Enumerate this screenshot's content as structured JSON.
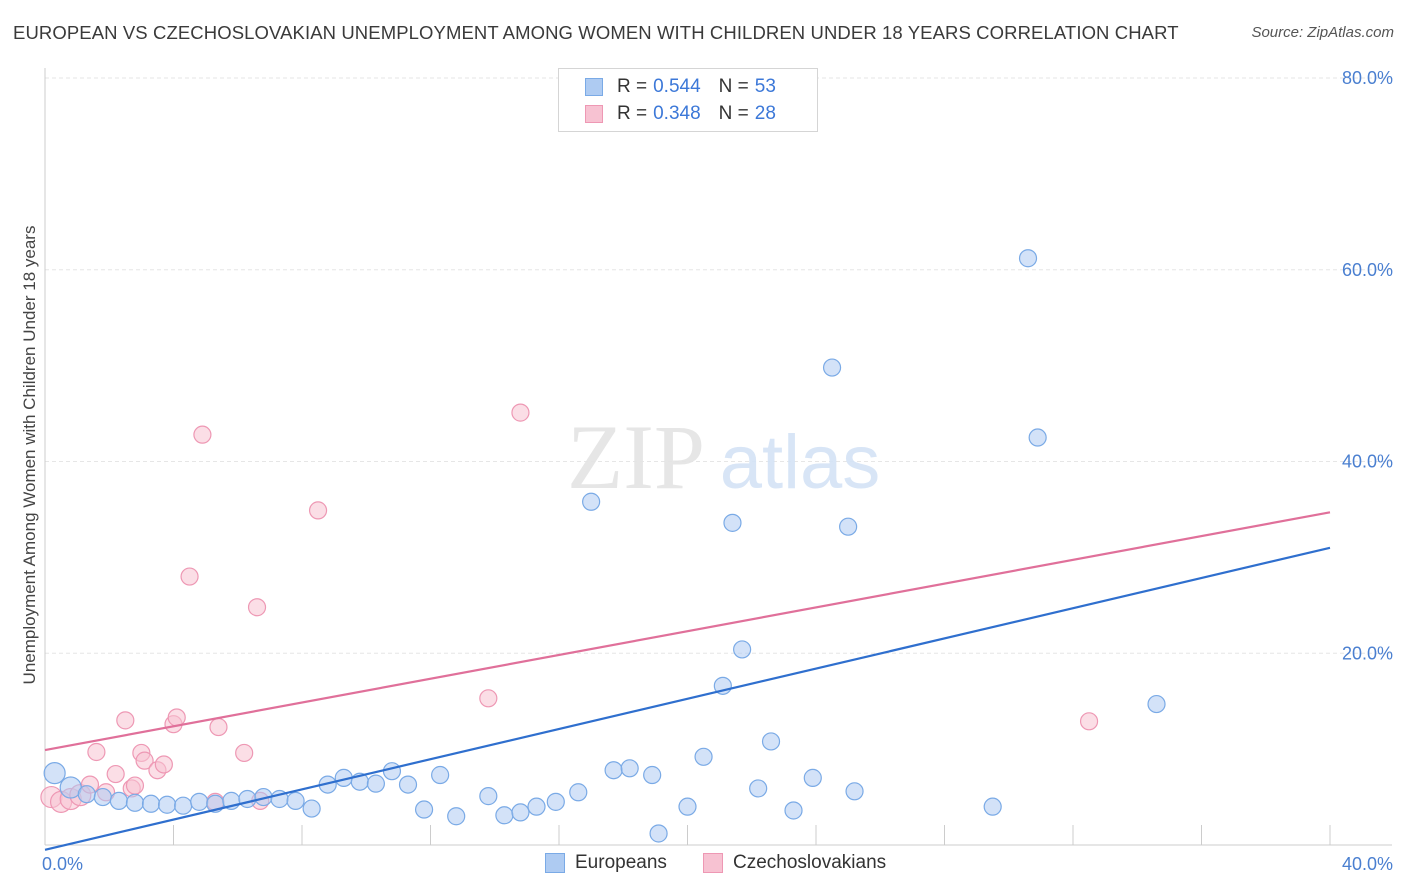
{
  "title": "EUROPEAN VS CZECHOSLOVAKIAN UNEMPLOYMENT AMONG WOMEN WITH CHILDREN UNDER 18 YEARS CORRELATION CHART",
  "source": "Source: ZipAtlas.com",
  "watermark": {
    "zip": "ZIP",
    "atlas": "atlas"
  },
  "legend": {
    "europeans": {
      "r_label": "R =",
      "r_value": "0.544",
      "n_label": "N =",
      "n_value": "53"
    },
    "czechoslovakians": {
      "r_label": "R =",
      "r_value": "0.348",
      "n_label": "N =",
      "n_value": "28"
    }
  },
  "colors": {
    "europeans_fill": "#aecbf2",
    "europeans_stroke": "#7aaae6",
    "europeans_line": "#2f6fce",
    "czech_fill": "#f7c2d2",
    "czech_stroke": "#ee98b4",
    "czech_line": "#e0709a",
    "grid": "#e6e6e6",
    "tick_label": "#4a7fd0"
  },
  "chart_data": {
    "type": "scatter",
    "title": "EUROPEAN VS CZECHOSLOVAKIAN UNEMPLOYMENT AMONG WOMEN WITH CHILDREN UNDER 18 YEARS CORRELATION CHART",
    "xlabel": "",
    "ylabel": "Unemployment Among Women with Children Under 18 years",
    "xlim": [
      0,
      40
    ],
    "ylim": [
      0,
      80
    ],
    "x_tick_labels": [
      "0.0%",
      "40.0%"
    ],
    "y_tick_labels": [
      "20.0%",
      "40.0%",
      "60.0%",
      "80.0%"
    ],
    "y_ticks": [
      20,
      40,
      60,
      80
    ],
    "grid": true,
    "legend_position": "top-center",
    "series": [
      {
        "name": "Europeans",
        "points": [
          [
            0.3,
            7.5
          ],
          [
            0.8,
            6.0
          ],
          [
            1.3,
            5.3
          ],
          [
            1.8,
            5.0
          ],
          [
            2.3,
            4.6
          ],
          [
            2.8,
            4.4
          ],
          [
            3.3,
            4.3
          ],
          [
            3.8,
            4.2
          ],
          [
            4.3,
            4.1
          ],
          [
            4.8,
            4.5
          ],
          [
            5.3,
            4.3
          ],
          [
            5.8,
            4.6
          ],
          [
            6.3,
            4.8
          ],
          [
            6.8,
            5.0
          ],
          [
            7.3,
            4.8
          ],
          [
            7.8,
            4.6
          ],
          [
            8.3,
            3.8
          ],
          [
            8.8,
            6.3
          ],
          [
            9.3,
            7.0
          ],
          [
            9.8,
            6.6
          ],
          [
            10.3,
            6.4
          ],
          [
            10.8,
            7.7
          ],
          [
            11.3,
            6.3
          ],
          [
            11.8,
            3.7
          ],
          [
            12.3,
            7.3
          ],
          [
            12.8,
            3.0
          ],
          [
            13.8,
            5.1
          ],
          [
            14.3,
            3.1
          ],
          [
            14.8,
            3.4
          ],
          [
            15.3,
            4.0
          ],
          [
            15.9,
            4.5
          ],
          [
            16.6,
            5.5
          ],
          [
            17.0,
            35.8
          ],
          [
            17.7,
            7.8
          ],
          [
            18.2,
            8.0
          ],
          [
            18.9,
            7.3
          ],
          [
            19.1,
            1.2
          ],
          [
            20.0,
            4.0
          ],
          [
            20.5,
            9.2
          ],
          [
            21.1,
            16.6
          ],
          [
            21.4,
            33.6
          ],
          [
            21.7,
            20.4
          ],
          [
            22.2,
            5.9
          ],
          [
            22.6,
            10.8
          ],
          [
            23.3,
            3.6
          ],
          [
            23.9,
            7.0
          ],
          [
            24.5,
            49.8
          ],
          [
            25.0,
            33.2
          ],
          [
            25.2,
            5.6
          ],
          [
            29.5,
            4.0
          ],
          [
            30.6,
            61.2
          ],
          [
            30.9,
            42.5
          ],
          [
            34.6,
            14.7
          ]
        ],
        "trendline": {
          "x": [
            0,
            40
          ],
          "y": [
            -0.5,
            31.0
          ]
        }
      },
      {
        "name": "Czechoslovakians",
        "points": [
          [
            0.2,
            5.0
          ],
          [
            0.5,
            4.5
          ],
          [
            0.8,
            4.8
          ],
          [
            1.1,
            5.2
          ],
          [
            1.4,
            6.3
          ],
          [
            1.6,
            9.7
          ],
          [
            1.9,
            5.5
          ],
          [
            2.2,
            7.4
          ],
          [
            2.5,
            13.0
          ],
          [
            2.7,
            5.9
          ],
          [
            2.8,
            6.2
          ],
          [
            3.0,
            9.6
          ],
          [
            3.1,
            8.8
          ],
          [
            3.5,
            7.8
          ],
          [
            3.7,
            8.4
          ],
          [
            4.0,
            12.6
          ],
          [
            4.1,
            13.3
          ],
          [
            4.5,
            28.0
          ],
          [
            4.9,
            42.8
          ],
          [
            5.3,
            4.5
          ],
          [
            5.4,
            12.3
          ],
          [
            6.2,
            9.6
          ],
          [
            6.6,
            24.8
          ],
          [
            6.7,
            4.6
          ],
          [
            8.5,
            34.9
          ],
          [
            13.8,
            15.3
          ],
          [
            14.8,
            45.1
          ],
          [
            32.5,
            12.9
          ]
        ],
        "trendline": {
          "x": [
            0,
            40
          ],
          "y": [
            9.9,
            34.7
          ]
        }
      }
    ]
  },
  "bottom_legend": {
    "europeans": "Europeans",
    "czechoslovakians": "Czechoslovakians"
  }
}
